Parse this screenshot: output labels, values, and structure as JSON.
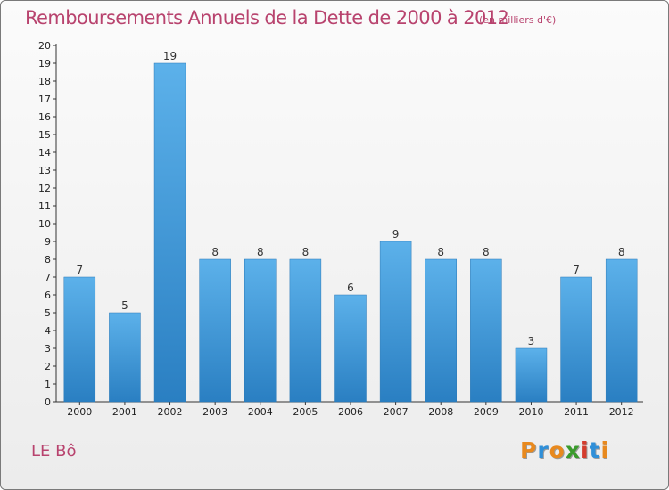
{
  "header": {
    "title": "Remboursements Annuels de la Dette de 2000 à 2012",
    "unit": "(en milliers d'€)"
  },
  "footer": {
    "commune": "LE Bô",
    "logo": "Proxiti",
    "logo_colors": [
      "#e8891e",
      "#2f8fd8",
      "#e8891e",
      "#3a9b2c",
      "#d43c2d",
      "#2f8fd8",
      "#e8891e"
    ]
  },
  "chart_data": {
    "type": "bar",
    "title": "Remboursements Annuels de la Dette de 2000 à 2012",
    "subtitle": "(en milliers d'€)",
    "categories": [
      "2000",
      "2001",
      "2002",
      "2003",
      "2004",
      "2005",
      "2006",
      "2007",
      "2008",
      "2009",
      "2010",
      "2011",
      "2012"
    ],
    "values": [
      7,
      5,
      19,
      8,
      8,
      8,
      6,
      9,
      8,
      8,
      3,
      7,
      8
    ],
    "data_labels": [
      "7",
      "5",
      "19",
      "8",
      "8",
      "8",
      "6",
      "9",
      "8",
      "8",
      "3",
      "7",
      "8"
    ],
    "yticks": [
      "0",
      "1",
      "2",
      "3",
      "4",
      "5",
      "6",
      "7",
      "8",
      "9",
      "10",
      "11",
      "12",
      "13",
      "14",
      "15",
      "16",
      "17",
      "18",
      "19",
      "20"
    ],
    "ylim": [
      0,
      20
    ],
    "xlabel": "",
    "ylabel": "",
    "grid": false,
    "bar_color": "#2f86c8",
    "bar_color_light": "#5aafe8"
  }
}
